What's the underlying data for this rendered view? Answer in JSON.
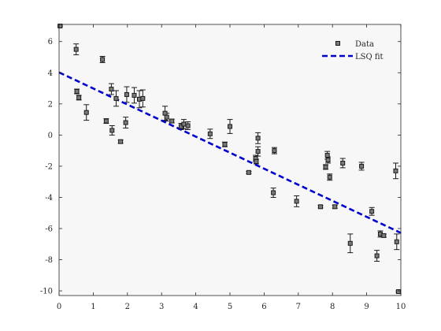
{
  "chart_data": {
    "type": "scatter",
    "title": "",
    "xlabel": "",
    "ylabel": "",
    "xlim": [
      0,
      10
    ],
    "ylim": [
      -10.3,
      7.1
    ],
    "xticks": [
      0,
      1,
      2,
      3,
      4,
      5,
      6,
      7,
      8,
      9,
      10
    ],
    "yticks": [
      -10,
      -8,
      -6,
      -4,
      -2,
      0,
      2,
      4,
      6
    ],
    "grid": false,
    "legend_position": "top-right",
    "colors": {
      "axes_bg": "#f7f7f7",
      "axes_border": "#262626",
      "marker_fill": "#7a7a7a",
      "marker_edge": "#1a1a1a",
      "errorbar": "#1a1a1a",
      "fit_line": "#0000cc"
    },
    "series": [
      {
        "name": "Data",
        "kind": "errorbar",
        "points": [
          {
            "x": 0.03,
            "y": 7.0,
            "err": 0.05
          },
          {
            "x": 0.5,
            "y": 5.5,
            "err": 0.35
          },
          {
            "x": 0.52,
            "y": 2.8,
            "err": 0.15
          },
          {
            "x": 0.58,
            "y": 2.4,
            "err": 0.15
          },
          {
            "x": 0.8,
            "y": 1.45,
            "err": 0.5
          },
          {
            "x": 1.27,
            "y": 4.85,
            "err": 0.2
          },
          {
            "x": 1.38,
            "y": 0.9,
            "err": 0.15
          },
          {
            "x": 1.53,
            "y": 2.95,
            "err": 0.35
          },
          {
            "x": 1.55,
            "y": 0.3,
            "err": 0.3
          },
          {
            "x": 1.67,
            "y": 2.35,
            "err": 0.5
          },
          {
            "x": 1.8,
            "y": -0.42,
            "err": 0.1
          },
          {
            "x": 1.95,
            "y": 0.8,
            "err": 0.35
          },
          {
            "x": 1.98,
            "y": 2.6,
            "err": 0.5
          },
          {
            "x": 2.2,
            "y": 2.55,
            "err": 0.5
          },
          {
            "x": 2.35,
            "y": 2.3,
            "err": 0.55
          },
          {
            "x": 2.45,
            "y": 2.35,
            "err": 0.55
          },
          {
            "x": 3.1,
            "y": 1.4,
            "err": 0.45
          },
          {
            "x": 3.15,
            "y": 1.15,
            "err": 0.25
          },
          {
            "x": 3.3,
            "y": 0.9,
            "err": 0.12
          },
          {
            "x": 3.57,
            "y": 0.55,
            "err": 0.2
          },
          {
            "x": 3.65,
            "y": 0.7,
            "err": 0.3
          },
          {
            "x": 3.77,
            "y": 0.6,
            "err": 0.25
          },
          {
            "x": 4.42,
            "y": 0.08,
            "err": 0.3
          },
          {
            "x": 4.85,
            "y": -0.6,
            "err": 0.15
          },
          {
            "x": 5.0,
            "y": 0.55,
            "err": 0.45
          },
          {
            "x": 5.55,
            "y": -2.4,
            "err": 0.07
          },
          {
            "x": 5.75,
            "y": -1.5,
            "err": 0.2
          },
          {
            "x": 5.77,
            "y": -1.7,
            "err": 0.15
          },
          {
            "x": 5.82,
            "y": -0.2,
            "err": 0.35
          },
          {
            "x": 5.82,
            "y": -1.05,
            "err": 0.3
          },
          {
            "x": 6.3,
            "y": -1.0,
            "err": 0.2
          },
          {
            "x": 6.27,
            "y": -3.7,
            "err": 0.3
          },
          {
            "x": 6.95,
            "y": -4.25,
            "err": 0.35
          },
          {
            "x": 7.65,
            "y": -4.6,
            "err": 0.08
          },
          {
            "x": 7.8,
            "y": -2.05,
            "err": 0.15
          },
          {
            "x": 7.85,
            "y": -1.3,
            "err": 0.25
          },
          {
            "x": 7.87,
            "y": -1.6,
            "err": 0.2
          },
          {
            "x": 7.92,
            "y": -2.7,
            "err": 0.2
          },
          {
            "x": 8.07,
            "y": -4.6,
            "err": 0.1
          },
          {
            "x": 8.3,
            "y": -1.8,
            "err": 0.3
          },
          {
            "x": 8.52,
            "y": -6.95,
            "err": 0.6
          },
          {
            "x": 8.85,
            "y": -2.0,
            "err": 0.25
          },
          {
            "x": 9.15,
            "y": -4.9,
            "err": 0.25
          },
          {
            "x": 9.3,
            "y": -7.75,
            "err": 0.35
          },
          {
            "x": 9.4,
            "y": -6.35,
            "err": 0.2
          },
          {
            "x": 9.5,
            "y": -6.45,
            "err": 0.1
          },
          {
            "x": 9.85,
            "y": -2.3,
            "err": 0.5
          },
          {
            "x": 9.88,
            "y": -6.85,
            "err": 0.5
          },
          {
            "x": 9.93,
            "y": -10.05,
            "err": 0.05
          }
        ]
      },
      {
        "name": "LSQ fit",
        "kind": "line",
        "style": "dashed",
        "x": [
          0,
          10
        ],
        "y": [
          4.02,
          -6.28
        ]
      }
    ]
  }
}
